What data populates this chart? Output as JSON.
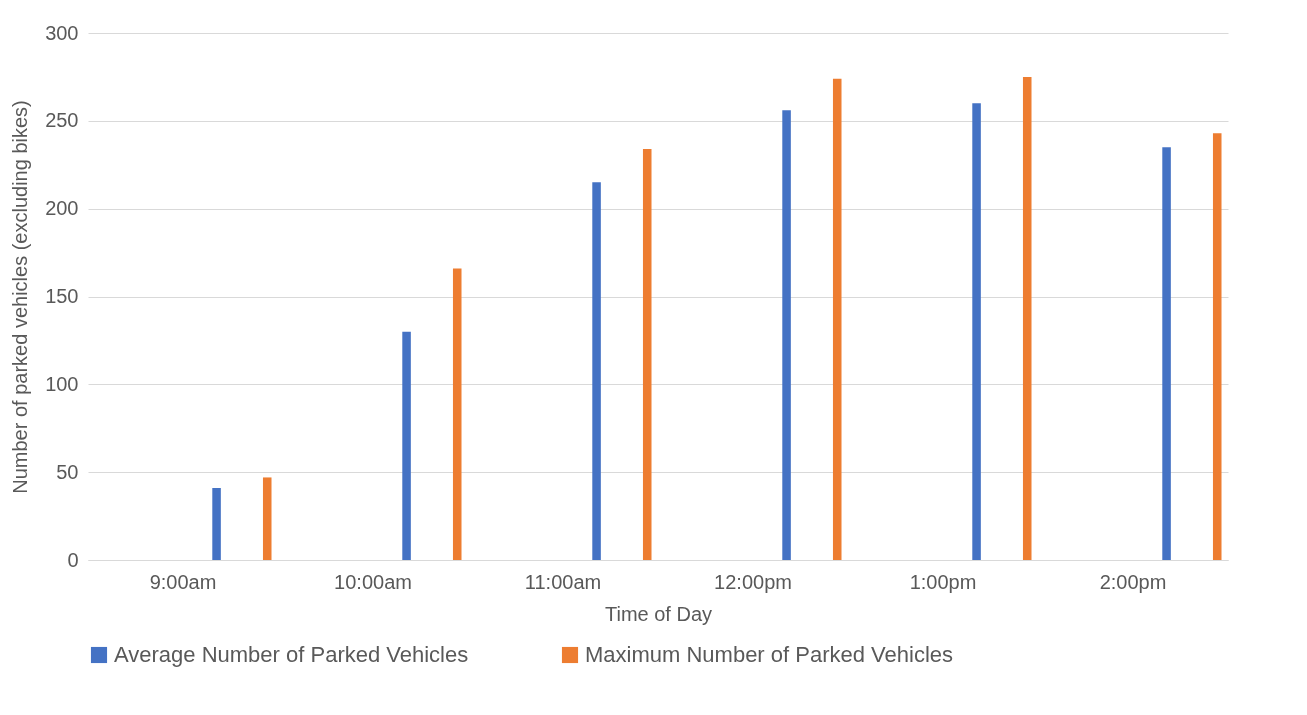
{
  "chart_data": {
    "type": "bar",
    "xlabel": "Time of Day",
    "ylabel": "Number of parked vehicles (excluding bikes)",
    "categories": [
      "9:00am",
      "10:00am",
      "11:00am",
      "12:00pm",
      "1:00pm",
      "2:00pm"
    ],
    "series": [
      {
        "name": "Average Number of Parked Vehicles",
        "color": "#4472c4",
        "values": [
          41,
          130,
          215,
          256,
          260,
          235
        ]
      },
      {
        "name": "Maximum Number of Parked Vehicles",
        "color": "#ed7d31",
        "values": [
          47,
          166,
          234,
          274,
          275,
          243
        ]
      }
    ],
    "ylim": [
      0,
      300
    ],
    "yticks": [
      0,
      50,
      100,
      150,
      200,
      250,
      300
    ],
    "grid": "y",
    "legend": "bottom"
  }
}
